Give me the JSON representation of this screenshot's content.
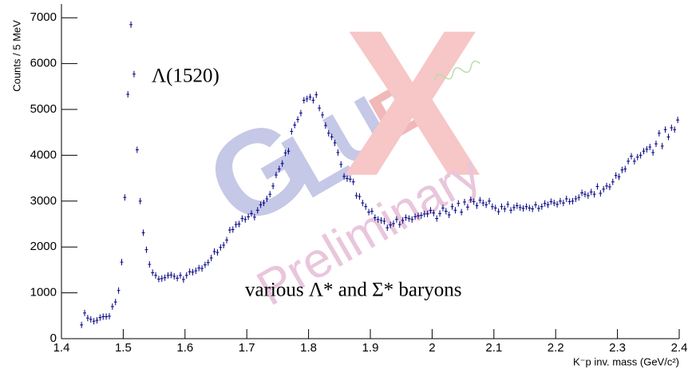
{
  "chart_data": {
    "type": "scatter",
    "y_label": "Counts / 5 MeV",
    "x_label": "K⁻p inv. mass (GeV/c²)",
    "annotations": [
      "Λ(1520)",
      "various Λ* and Σ* baryons"
    ],
    "watermark": "Preliminary",
    "logo": [
      "G",
      "L",
      "U",
      "E",
      "X"
    ],
    "color": "#000080",
    "xlim": [
      1.4,
      2.4
    ],
    "ylim": [
      0,
      7300
    ],
    "xticks": [
      1.4,
      1.5,
      1.6,
      1.7,
      1.8,
      1.9,
      2,
      2.1,
      2.2,
      2.3,
      2.4
    ],
    "yticks": [
      0,
      1000,
      2000,
      3000,
      4000,
      5000,
      6000,
      7000
    ],
    "x": [
      1.4325,
      1.4375,
      1.4425,
      1.4475,
      1.4525,
      1.4575,
      1.4625,
      1.4675,
      1.4725,
      1.4775,
      1.4825,
      1.4875,
      1.4925,
      1.4975,
      1.5025,
      1.5075,
      1.5125,
      1.5175,
      1.5225,
      1.5275,
      1.5325,
      1.5375,
      1.5425,
      1.5475,
      1.5525,
      1.5575,
      1.5625,
      1.5675,
      1.5725,
      1.5775,
      1.5825,
      1.5875,
      1.5925,
      1.5975,
      1.6025,
      1.6075,
      1.6125,
      1.6175,
      1.6225,
      1.6275,
      1.6325,
      1.6375,
      1.6425,
      1.6475,
      1.6525,
      1.6575,
      1.6625,
      1.6675,
      1.6725,
      1.6775,
      1.6825,
      1.6875,
      1.6925,
      1.6975,
      1.7025,
      1.7075,
      1.7125,
      1.7175,
      1.7225,
      1.7275,
      1.7325,
      1.7375,
      1.7425,
      1.7475,
      1.7525,
      1.7575,
      1.7625,
      1.7675,
      1.7725,
      1.7775,
      1.7825,
      1.7875,
      1.7925,
      1.7975,
      1.8025,
      1.8075,
      1.8125,
      1.8175,
      1.8225,
      1.8275,
      1.8325,
      1.8375,
      1.8425,
      1.8475,
      1.8525,
      1.8575,
      1.8625,
      1.8675,
      1.8725,
      1.8775,
      1.8825,
      1.8875,
      1.8925,
      1.8975,
      1.9025,
      1.9075,
      1.9125,
      1.9175,
      1.9225,
      1.9275,
      1.9325,
      1.9375,
      1.9425,
      1.9475,
      1.9525,
      1.9575,
      1.9625,
      1.9675,
      1.9725,
      1.9775,
      1.9825,
      1.9875,
      1.9925,
      1.9975,
      2.0025,
      2.0075,
      2.0125,
      2.0175,
      2.0225,
      2.0275,
      2.0325,
      2.0375,
      2.0425,
      2.0475,
      2.0525,
      2.0575,
      2.0625,
      2.0675,
      2.0725,
      2.0775,
      2.0825,
      2.0875,
      2.0925,
      2.0975,
      2.1025,
      2.1075,
      2.1125,
      2.1175,
      2.1225,
      2.1275,
      2.1325,
      2.1375,
      2.1425,
      2.1475,
      2.1525,
      2.1575,
      2.1625,
      2.1675,
      2.1725,
      2.1775,
      2.1825,
      2.1875,
      2.1925,
      2.1975,
      2.2025,
      2.2075,
      2.2125,
      2.2175,
      2.2225,
      2.2275,
      2.2325,
      2.2375,
      2.2425,
      2.2475,
      2.2525,
      2.2575,
      2.2625,
      2.2675,
      2.2725,
      2.2775,
      2.2825,
      2.2875,
      2.2925,
      2.2975,
      2.3025,
      2.3075,
      2.3125,
      2.3175,
      2.3225,
      2.3275,
      2.3325,
      2.3375,
      2.3425,
      2.3475,
      2.3525,
      2.3575,
      2.3625,
      2.3675,
      2.3725,
      2.3775,
      2.3825,
      2.3875,
      2.3925,
      2.3975
    ],
    "values": [
      300,
      560,
      450,
      420,
      380,
      400,
      460,
      480,
      480,
      490,
      700,
      800,
      1050,
      1670,
      3080,
      5330,
      6850,
      5770,
      4120,
      3000,
      2310,
      1940,
      1620,
      1440,
      1380,
      1300,
      1310,
      1330,
      1380,
      1390,
      1360,
      1320,
      1380,
      1290,
      1380,
      1460,
      1450,
      1480,
      1540,
      1530,
      1610,
      1660,
      1760,
      1900,
      1880,
      1990,
      2040,
      2150,
      2370,
      2380,
      2490,
      2500,
      2620,
      2600,
      2660,
      2730,
      2650,
      2800,
      2920,
      2960,
      3050,
      3150,
      3330,
      3570,
      3700,
      3820,
      4050,
      4090,
      4520,
      4660,
      4780,
      4920,
      5200,
      5230,
      5270,
      5200,
      5320,
      5030,
      4880,
      4650,
      4480,
      4400,
      4270,
      4060,
      3800,
      3540,
      3490,
      3480,
      3420,
      3120,
      3100,
      2960,
      2880,
      2760,
      2780,
      2640,
      2600,
      2580,
      2560,
      2420,
      2480,
      2510,
      2600,
      2490,
      2580,
      2640,
      2620,
      2600,
      2660,
      2680,
      2690,
      2720,
      2720,
      2800,
      2740,
      2620,
      2730,
      2850,
      2780,
      2700,
      2880,
      2800,
      2950,
      2760,
      2980,
      2870,
      3030,
      2990,
      2900,
      3020,
      2960,
      2920,
      3000,
      2880,
      2850,
      2770,
      2880,
      2830,
      2930,
      2800,
      2860,
      2900,
      2860,
      2840,
      2880,
      2850,
      2830,
      2920,
      2840,
      2880,
      2950,
      2920,
      2990,
      2960,
      2930,
      3000,
      2960,
      3050,
      2990,
      3000,
      3050,
      3080,
      3180,
      3150,
      3120,
      3200,
      3150,
      3320,
      3170,
      3260,
      3330,
      3310,
      3420,
      3560,
      3530,
      3680,
      3700,
      3870,
      3980,
      3870,
      3960,
      4000,
      4090,
      4130,
      4180,
      4060,
      4250,
      4480,
      4200,
      4560,
      4400,
      4600,
      4560,
      4770
    ]
  }
}
